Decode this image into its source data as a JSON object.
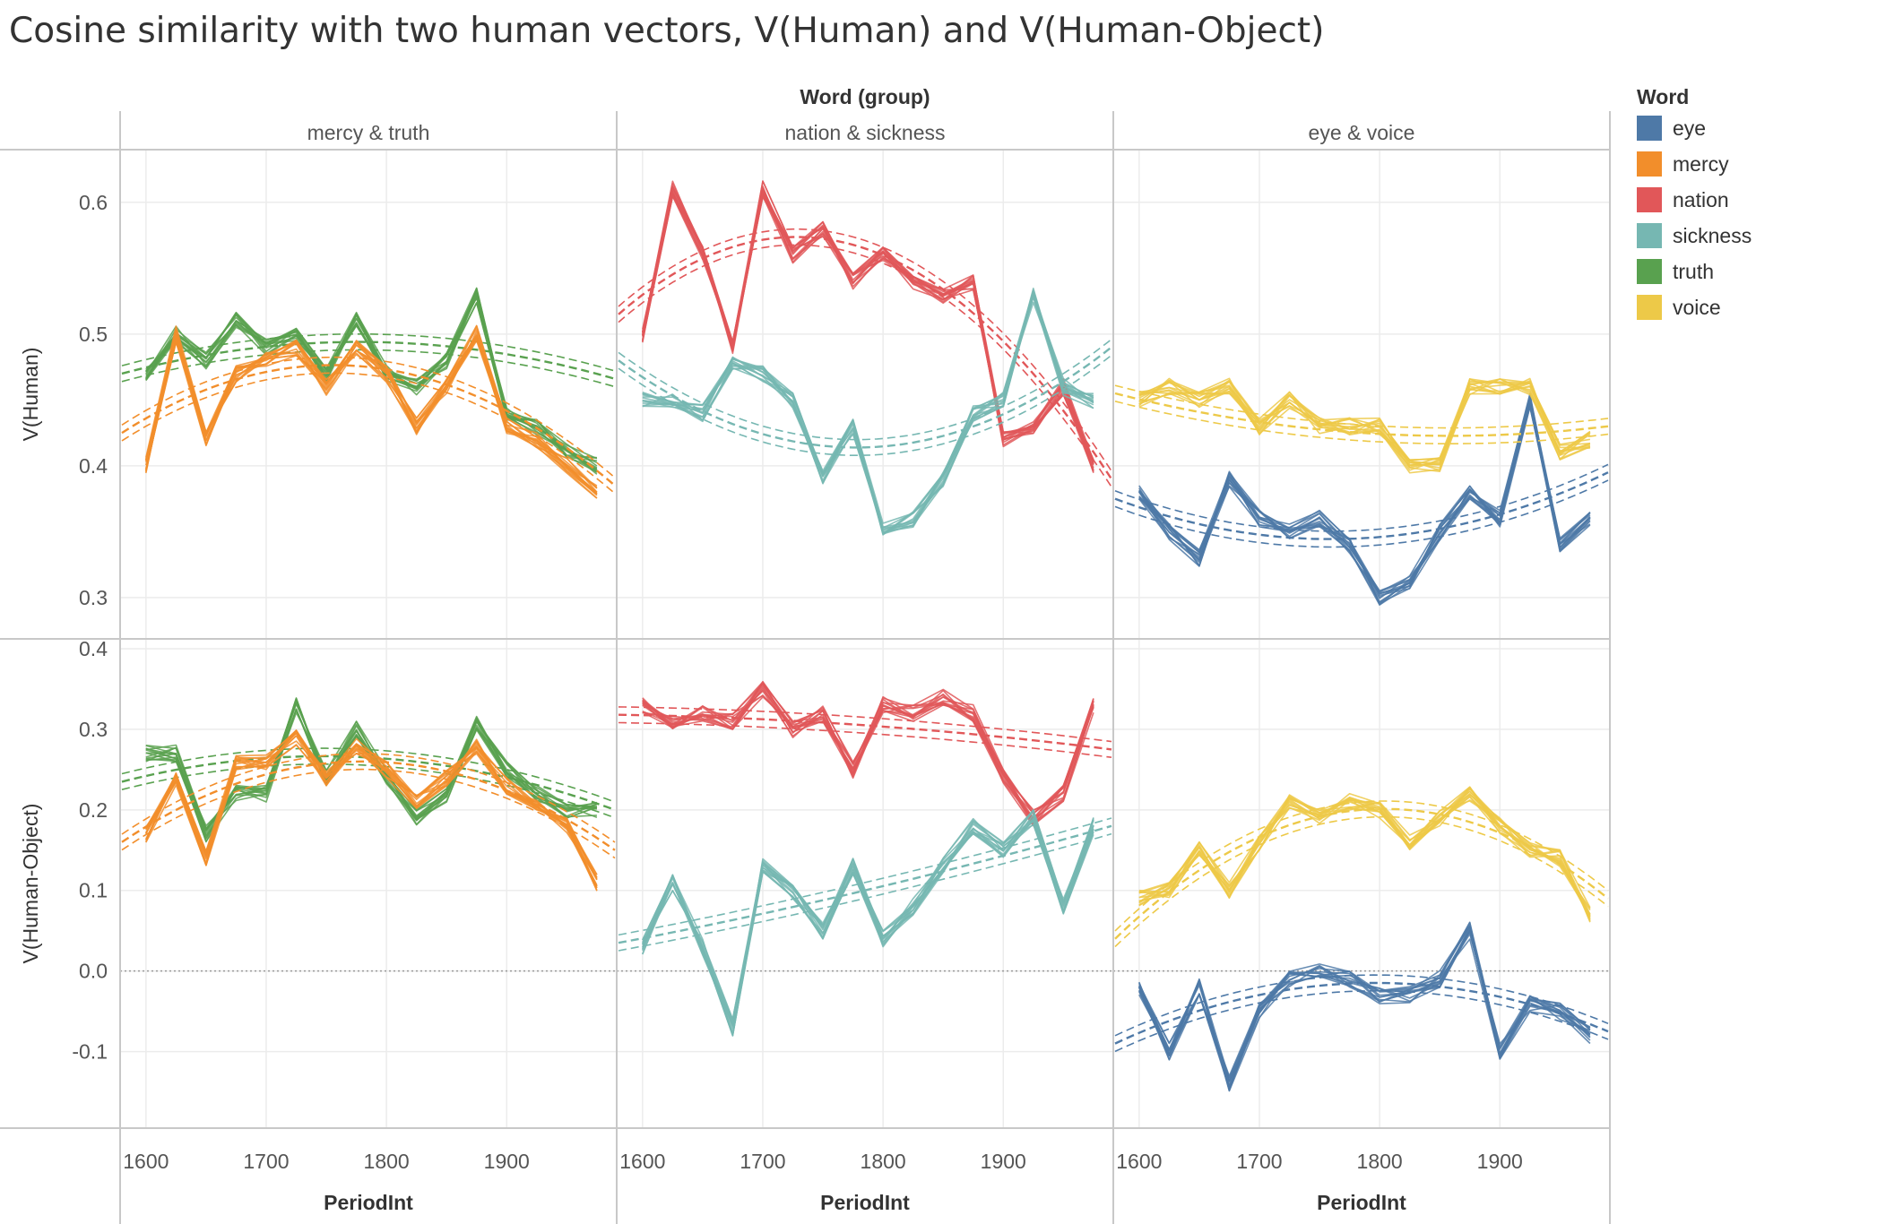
{
  "chart_data": {
    "type": "line",
    "title": "Cosine similarity with two human vectors, V(Human) and V(Human-Object)",
    "column_header": "Word (group)",
    "xlabel": "PeriodInt",
    "x_ticks": [
      1600,
      1700,
      1800,
      1900
    ],
    "xlim": [
      1580,
      1990
    ],
    "rows": [
      {
        "label": "V(Human)",
        "ylim": [
          0.27,
          0.64
        ],
        "ticks": [
          0.6,
          0.5,
          0.4,
          0.3
        ],
        "tick_labels": [
          "0.6",
          "0.5",
          "0.4",
          "0.3"
        ],
        "zero_line": false
      },
      {
        "label": "V(Human-Object)",
        "ylim": [
          -0.195,
          0.41
        ],
        "ticks": [
          0.4,
          0.3,
          0.2,
          0.1,
          0.0,
          -0.1
        ],
        "tick_labels": [
          "0.4",
          "0.3",
          "0.2",
          "0.1",
          "0.0",
          "-0.1"
        ],
        "zero_line": true
      }
    ],
    "columns": [
      "mercy & truth",
      "nation & sickness",
      "eye & voice"
    ],
    "x": [
      1600,
      1625,
      1650,
      1675,
      1700,
      1725,
      1750,
      1775,
      1800,
      1825,
      1850,
      1875,
      1900,
      1925,
      1950,
      1975
    ],
    "series": [
      {
        "name": "truth",
        "color": "#59A14F",
        "facet": "mercy & truth",
        "human": [
          0.47,
          0.5,
          0.48,
          0.51,
          0.49,
          0.5,
          0.47,
          0.51,
          0.47,
          0.46,
          0.48,
          0.53,
          0.44,
          0.43,
          0.41,
          0.4
        ],
        "human_obj": [
          0.27,
          0.27,
          0.17,
          0.22,
          0.22,
          0.33,
          0.24,
          0.3,
          0.24,
          0.19,
          0.22,
          0.31,
          0.25,
          0.22,
          0.2,
          0.2
        ],
        "trend_human": [
          0.47,
          0.494,
          0.466
        ],
        "trend_obj": [
          0.235,
          0.265,
          0.2
        ]
      },
      {
        "name": "mercy",
        "color": "#F28E2B",
        "facet": "mercy & truth",
        "human": [
          0.4,
          0.5,
          0.42,
          0.47,
          0.48,
          0.49,
          0.46,
          0.49,
          0.47,
          0.43,
          0.46,
          0.5,
          0.43,
          0.42,
          0.4,
          0.38
        ],
        "human_obj": [
          0.17,
          0.24,
          0.14,
          0.26,
          0.26,
          0.29,
          0.24,
          0.28,
          0.25,
          0.21,
          0.24,
          0.28,
          0.23,
          0.21,
          0.18,
          0.11
        ],
        "trend_human": [
          0.425,
          0.475,
          0.385
        ],
        "trend_obj": [
          0.16,
          0.26,
          0.15
        ]
      },
      {
        "name": "nation",
        "color": "#E15759",
        "facet": "nation & sickness",
        "human": [
          0.5,
          0.61,
          0.56,
          0.49,
          0.61,
          0.56,
          0.58,
          0.54,
          0.56,
          0.54,
          0.53,
          0.54,
          0.42,
          0.43,
          0.46,
          0.4
        ],
        "human_obj": [
          0.33,
          0.31,
          0.32,
          0.31,
          0.35,
          0.3,
          0.32,
          0.25,
          0.33,
          0.32,
          0.34,
          0.32,
          0.24,
          0.19,
          0.22,
          0.33
        ],
        "trend_human": [
          0.515,
          0.565,
          0.39
        ],
        "trend_obj": [
          0.318,
          0.305,
          0.275
        ]
      },
      {
        "name": "sickness",
        "color": "#76B7B2",
        "facet": "nation & sickness",
        "human": [
          0.45,
          0.45,
          0.44,
          0.48,
          0.47,
          0.45,
          0.39,
          0.43,
          0.35,
          0.36,
          0.39,
          0.44,
          0.45,
          0.53,
          0.46,
          0.45
        ],
        "human_obj": [
          0.03,
          0.11,
          0.03,
          -0.07,
          0.13,
          0.1,
          0.05,
          0.13,
          0.04,
          0.08,
          0.13,
          0.18,
          0.15,
          0.19,
          0.08,
          0.18
        ],
        "trend_human": [
          0.48,
          0.414,
          0.49
        ],
        "trend_obj": [
          0.035,
          0.1,
          0.18
        ]
      },
      {
        "name": "eye",
        "color": "#4E79A7",
        "facet": "eye & voice",
        "human": [
          0.38,
          0.35,
          0.33,
          0.39,
          0.36,
          0.35,
          0.36,
          0.34,
          0.3,
          0.31,
          0.35,
          0.38,
          0.36,
          0.45,
          0.34,
          0.36
        ],
        "human_obj": [
          -0.02,
          -0.1,
          -0.02,
          -0.14,
          -0.05,
          -0.01,
          0.0,
          -0.01,
          -0.03,
          -0.03,
          -0.01,
          0.05,
          -0.1,
          -0.04,
          -0.05,
          -0.08
        ],
        "trend_human": [
          0.375,
          0.345,
          0.395
        ],
        "trend_obj": [
          -0.09,
          -0.015,
          -0.075
        ]
      },
      {
        "name": "voice",
        "color": "#EDC948",
        "facet": "eye & voice",
        "human": [
          0.45,
          0.46,
          0.45,
          0.46,
          0.43,
          0.45,
          0.43,
          0.43,
          0.43,
          0.4,
          0.4,
          0.46,
          0.46,
          0.46,
          0.41,
          0.42
        ],
        "human_obj": [
          0.09,
          0.1,
          0.15,
          0.1,
          0.16,
          0.21,
          0.19,
          0.21,
          0.2,
          0.16,
          0.19,
          0.22,
          0.18,
          0.15,
          0.14,
          0.07
        ],
        "trend_human": [
          0.455,
          0.425,
          0.43
        ],
        "trend_obj": [
          0.04,
          0.2,
          0.09
        ]
      }
    ],
    "legend": {
      "title": "Word",
      "position": "right",
      "entries": [
        {
          "label": "eye",
          "color": "#4E79A7"
        },
        {
          "label": "mercy",
          "color": "#F28E2B"
        },
        {
          "label": "nation",
          "color": "#E15759"
        },
        {
          "label": "sickness",
          "color": "#76B7B2"
        },
        {
          "label": "truth",
          "color": "#59A14F"
        },
        {
          "label": "voice",
          "color": "#EDC948"
        }
      ]
    },
    "grid": true,
    "empty_cells": [
      [
        0,
        0
      ],
      [
        1,
        2,
        "eye & voice has data"
      ]
    ]
  }
}
